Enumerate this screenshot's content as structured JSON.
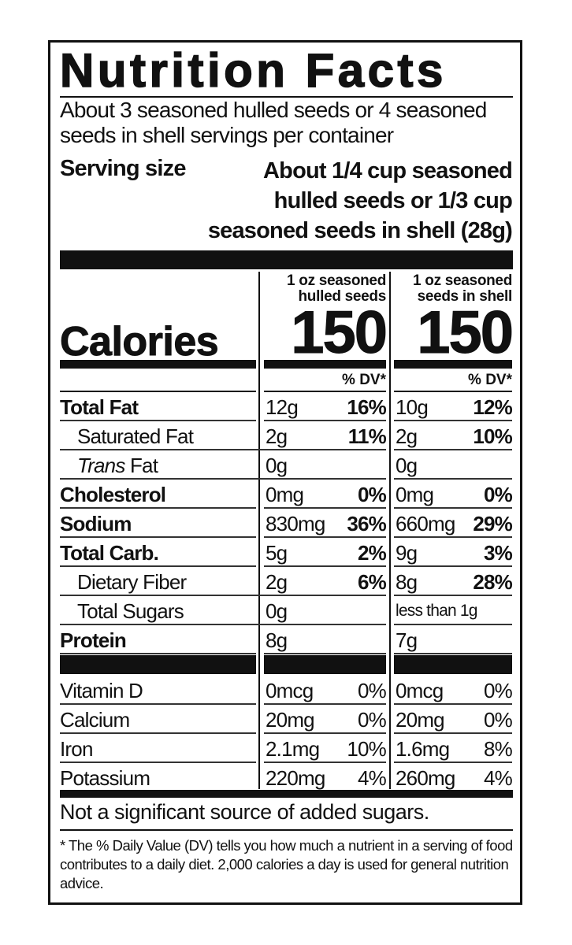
{
  "title": "Nutrition Facts",
  "servings_per_container": "About 3 seasoned hulled seeds or 4 seasoned seeds in shell servings per container",
  "serving_size_label": "Serving size",
  "serving_size_lines": [
    "About 1/4 cup seasoned",
    "hulled seeds or 1/3 cup",
    "seasoned seeds in shell (28g)"
  ],
  "columns": [
    {
      "header_line1": "1 oz seasoned",
      "header_line2": "hulled seeds",
      "calories": "150",
      "dv_label": "% DV*"
    },
    {
      "header_line1": "1 oz seasoned",
      "header_line2": "seeds in shell",
      "calories": "150",
      "dv_label": "% DV*"
    }
  ],
  "calories_label": "Calories",
  "nutrients": [
    {
      "name": "Total Fat",
      "style": "bold",
      "c1_amount": "12g",
      "c1_dv": "16%",
      "c2_amount": "10g",
      "c2_dv": "12%"
    },
    {
      "name": "Saturated Fat",
      "style": "indent",
      "c1_amount": "2g",
      "c1_dv": "11%",
      "c2_amount": "2g",
      "c2_dv": "10%"
    },
    {
      "name": "Trans Fat",
      "style": "indent-italic",
      "c1_amount": "0g",
      "c1_dv": "",
      "c2_amount": "0g",
      "c2_dv": ""
    },
    {
      "name": "Cholesterol",
      "style": "bold",
      "c1_amount": "0mg",
      "c1_dv": "0%",
      "c2_amount": "0mg",
      "c2_dv": "0%"
    },
    {
      "name": "Sodium",
      "style": "bold",
      "c1_amount": "830mg",
      "c1_dv": "36%",
      "c2_amount": "660mg",
      "c2_dv": "29%"
    },
    {
      "name": "Total Carb.",
      "style": "bold",
      "c1_amount": "5g",
      "c1_dv": "2%",
      "c2_amount": "9g",
      "c2_dv": "3%"
    },
    {
      "name": "Dietary Fiber",
      "style": "indent",
      "c1_amount": "2g",
      "c1_dv": "6%",
      "c2_amount": "8g",
      "c2_dv": "28%"
    },
    {
      "name": "Total Sugars",
      "style": "indent",
      "c1_amount": "0g",
      "c1_dv": "",
      "c2_amount": "less than 1g",
      "c2_dv": ""
    },
    {
      "name": "Protein",
      "style": "bold",
      "c1_amount": "8g",
      "c1_dv": "",
      "c2_amount": "7g",
      "c2_dv": ""
    }
  ],
  "vitamins": [
    {
      "name": "Vitamin D",
      "c1_amount": "0mcg",
      "c1_dv": "0%",
      "c2_amount": "0mcg",
      "c2_dv": "0%"
    },
    {
      "name": "Calcium",
      "c1_amount": "20mg",
      "c1_dv": "0%",
      "c2_amount": "20mg",
      "c2_dv": "0%"
    },
    {
      "name": "Iron",
      "c1_amount": "2.1mg",
      "c1_dv": "10%",
      "c2_amount": "1.6mg",
      "c2_dv": "8%"
    },
    {
      "name": "Potassium",
      "c1_amount": "220mg",
      "c1_dv": "4%",
      "c2_amount": "260mg",
      "c2_dv": "4%"
    }
  ],
  "added_sugars_note": "Not a significant source of added sugars.",
  "footnote": "* The % Daily Value (DV) tells you how much a nutrient in a serving of food contributes to a daily diet. 2,000 calories a day is used for general nutrition advice."
}
